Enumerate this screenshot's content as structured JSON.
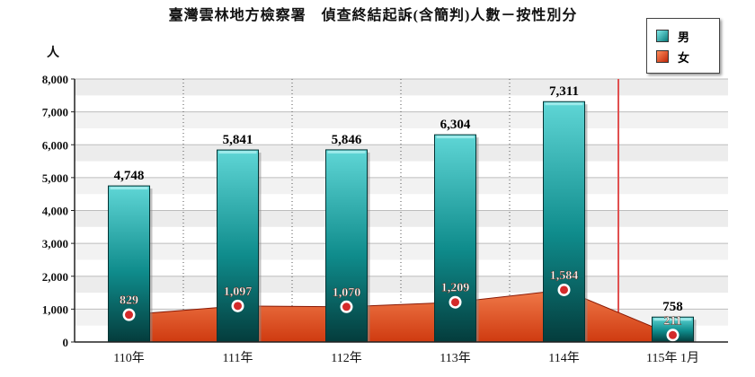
{
  "title": "臺灣雲林地方檢察署　偵查終結起訴(含簡判)人數－按性別分",
  "y_unit": "人",
  "legend": {
    "male_label": "男",
    "female_label": "女"
  },
  "colors": {
    "male_bar_light": "#5fd6d6",
    "male_bar_dark": "#043c3c",
    "female_area": "#cf3a10",
    "female_area_light": "#f07a4a",
    "female_marker": "#d42a2a",
    "divider": "#e05050"
  },
  "chart_data": {
    "type": "bar",
    "categories": [
      "110年",
      "111年",
      "112年",
      "113年",
      "114年",
      "115年 1月"
    ],
    "series": [
      {
        "name": "男",
        "kind": "bar",
        "values": [
          4748,
          5841,
          5846,
          6304,
          7311,
          758
        ]
      },
      {
        "name": "女",
        "kind": "area",
        "values": [
          829,
          1097,
          1070,
          1209,
          1584,
          211
        ]
      }
    ],
    "male_labels": [
      "4,748",
      "5,841",
      "5,846",
      "6,304",
      "7,311",
      "758"
    ],
    "female_labels": [
      "829",
      "1,097",
      "1,070",
      "1,209",
      "1,584",
      "211"
    ],
    "ylim": [
      0,
      8000
    ],
    "yticks": [
      0,
      1000,
      2000,
      3000,
      4000,
      5000,
      6000,
      7000,
      8000
    ],
    "ytick_labels": [
      "0",
      "1,000",
      "2,000",
      "3,000",
      "4,000",
      "5,000",
      "6,000",
      "7,000",
      "8,000"
    ],
    "grid": true,
    "legend_position": "top-right"
  }
}
